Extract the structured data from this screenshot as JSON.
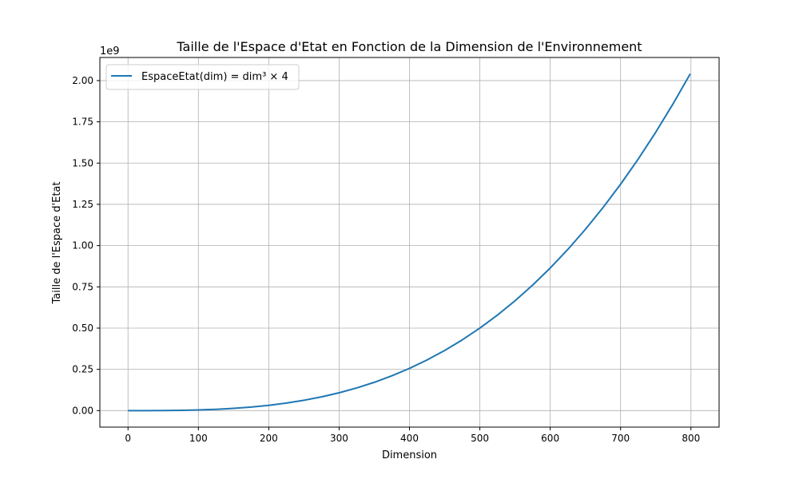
{
  "chart_data": {
    "type": "line",
    "title": "Taille de l'Espace d'Etat en Fonction de la Dimension de l'Environnement",
    "xlabel": "Dimension",
    "ylabel": "Taille de l'Espace d'Etat",
    "offset_text": "1e9",
    "xlim": [
      -40,
      840
    ],
    "ylim": [
      -0.1,
      2.14
    ],
    "x_ticks": [
      0,
      100,
      200,
      300,
      400,
      500,
      600,
      700,
      800
    ],
    "x_tick_labels": [
      "0",
      "100",
      "200",
      "300",
      "400",
      "500",
      "600",
      "700",
      "800"
    ],
    "y_ticks": [
      0,
      0.25,
      0.5,
      0.75,
      1.0,
      1.25,
      1.5,
      1.75,
      2.0
    ],
    "y_tick_labels": [
      "0.00",
      "0.25",
      "0.50",
      "0.75",
      "1.00",
      "1.25",
      "1.50",
      "1.75",
      "2.00"
    ],
    "grid": true,
    "legend_position": "top-left",
    "series": [
      {
        "name": "EspaceEtat(dim) = dim³ × 4",
        "color": "#1f77b4",
        "x": [
          0,
          25,
          50,
          75,
          100,
          125,
          150,
          175,
          200,
          225,
          250,
          275,
          300,
          325,
          350,
          375,
          400,
          425,
          450,
          475,
          500,
          525,
          550,
          575,
          600,
          625,
          650,
          675,
          700,
          725,
          750,
          775,
          799
        ],
        "y": [
          0,
          6.25e-05,
          0.0005,
          0.0016875,
          0.004,
          0.0078125,
          0.0135,
          0.0214375,
          0.032,
          0.0455625,
          0.0625,
          0.0831875,
          0.108,
          0.1373125,
          0.1715,
          0.2109375,
          0.256,
          0.3070625,
          0.3645,
          0.4286875,
          0.5,
          0.5788125,
          0.6655,
          0.7604375,
          0.864,
          0.9765625,
          1.0985,
          1.2301875,
          1.372,
          1.5241875,
          1.6875,
          1.8621875,
          2.0407196
        ]
      }
    ]
  }
}
